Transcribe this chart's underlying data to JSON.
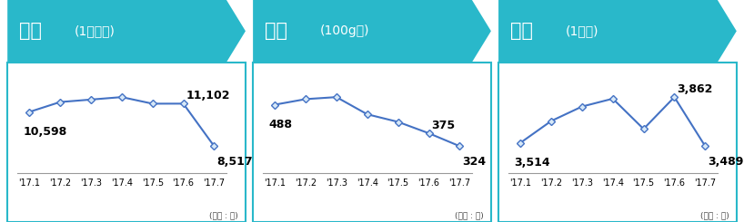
{
  "panels": [
    {
      "title_main": "갈치",
      "title_sub": "(1마리당)",
      "x_labels": [
        "'17.1",
        "'17.2",
        "'17.3",
        "'17.4",
        "'17.5",
        "'17.6",
        "'17.7"
      ],
      "values": [
        10598,
        11200,
        11350,
        11500,
        11100,
        11102,
        8517
      ],
      "annot_first": "10,598",
      "annot_first_idx": 0,
      "annot_peak": "11,102",
      "annot_peak_idx": 5,
      "annot_last": "8,517",
      "annot_last_idx": 6
    },
    {
      "title_main": "감자",
      "title_sub": "(100g당)",
      "x_labels": [
        "'17.1",
        "'17.2",
        "'17.3",
        "'17.4",
        "'17.5",
        "'17.6",
        "'17.7"
      ],
      "values": [
        488,
        510,
        518,
        450,
        420,
        375,
        324
      ],
      "annot_first": "488",
      "annot_first_idx": 0,
      "annot_peak": "375",
      "annot_peak_idx": 5,
      "annot_last": "324",
      "annot_last_idx": 6
    },
    {
      "title_main": "양파",
      "title_sub": "(1망당)",
      "x_labels": [
        "'17.1",
        "'17.2",
        "'17.3",
        "'17.4",
        "'17.5",
        "'17.6",
        "'17.7"
      ],
      "values": [
        3514,
        3680,
        3790,
        3850,
        3620,
        3862,
        3489
      ],
      "annot_first": "3,514",
      "annot_first_idx": 0,
      "annot_peak": "3,862",
      "annot_peak_idx": 5,
      "annot_last": "3,489",
      "annot_last_idx": 6
    }
  ],
  "header_bg_color": "#29B8CA",
  "panel_border_color": "#29B8CA",
  "line_color": "#4472C4",
  "marker_face": "#D6E8F7",
  "marker_edge": "#4472C4",
  "bg_color": "#FFFFFF",
  "unit_label": "(단위 : 원)",
  "title_main_fontsize": 15,
  "title_sub_fontsize": 10,
  "annot_fontsize": 9,
  "xtick_fontsize": 7
}
